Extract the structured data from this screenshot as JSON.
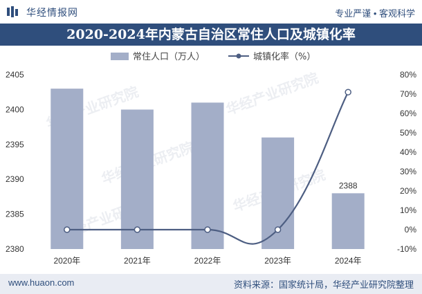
{
  "header": {
    "brand": "华经情报网",
    "tagline": "专业严谨 • 客观科学"
  },
  "footer": {
    "site": "www.huaon.com",
    "source": "资料来源：国家统计局，华经产业研究院整理"
  },
  "watermark": "华经产业研究院",
  "colors": {
    "header_bg": "#2f4e7c",
    "bar": "#a3aec8",
    "line": "#4d5e82",
    "footer_bg": "#e9ecf3"
  },
  "chart_data": {
    "type": "bar",
    "title": "2020-2024年内蒙古自治区常住人口及城镇化率",
    "categories": [
      "2020年",
      "2021年",
      "2022年",
      "2023年",
      "2024年"
    ],
    "series": [
      {
        "name": "常住人口（万人）",
        "type": "bar",
        "axis": "left",
        "values": [
          2403,
          2400,
          2401,
          2396,
          2388
        ]
      },
      {
        "name": "城镇化率（%）",
        "type": "line",
        "axis": "right",
        "smooth": true,
        "values": [
          0,
          0,
          0,
          0,
          71
        ]
      }
    ],
    "left_axis": {
      "ylim": [
        2380,
        2405
      ],
      "ticks": [
        2380,
        2385,
        2390,
        2395,
        2400,
        2405
      ]
    },
    "right_axis": {
      "ylim": [
        -10,
        80
      ],
      "ticks": [
        "-10%",
        "0%",
        "10%",
        "20%",
        "30%",
        "40%",
        "50%",
        "60%",
        "70%",
        "80%"
      ]
    },
    "data_labels": [
      {
        "category": "2024年",
        "text": "2388"
      }
    ],
    "legend": "top-center",
    "grid": false
  }
}
